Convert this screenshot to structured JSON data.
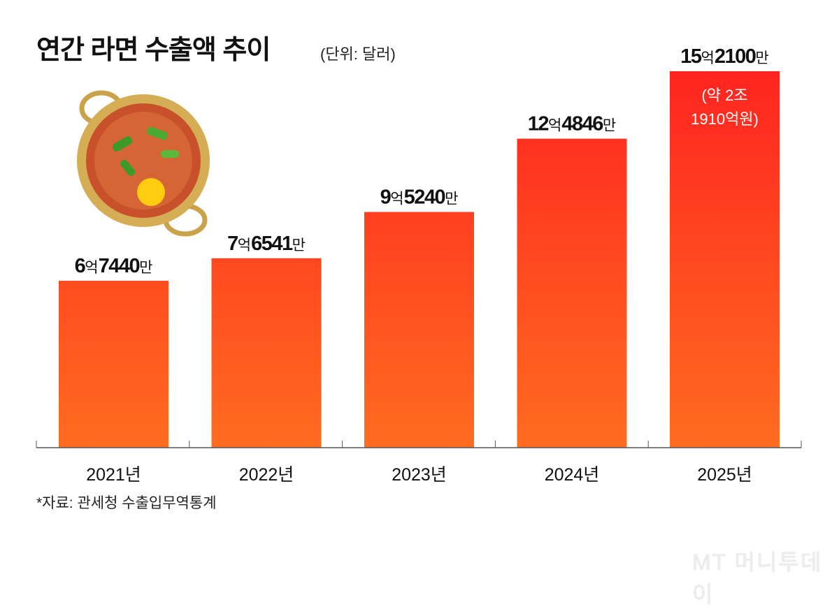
{
  "title": "연간 라면 수출액 추이",
  "unit_note": "(단위: 달러)",
  "source": "*자료: 관세청 수출입무역통계",
  "logo": "MT 머니투데이",
  "colors": {
    "bar_top": "#ff2420",
    "bar_bottom": "#ff6c20",
    "axis": "#555555"
  },
  "illustration": "ramen-pot-icon",
  "chart_data": {
    "type": "bar",
    "title": "연간 라면 수출액 추이",
    "ylabel": "(단위: 달러)",
    "categories": [
      "2021년",
      "2022년",
      "2023년",
      "2024년",
      "2025년"
    ],
    "values": [
      674400000,
      765410000,
      952400000,
      1248460000,
      1521000000
    ],
    "data_labels": [
      [
        {
          "t": "6",
          "b": true
        },
        {
          "t": "억",
          "b": false
        },
        {
          "t": "7440",
          "b": true
        },
        {
          "t": "만",
          "b": false
        }
      ],
      [
        {
          "t": "7",
          "b": true
        },
        {
          "t": "억",
          "b": false
        },
        {
          "t": "6541",
          "b": true
        },
        {
          "t": "만",
          "b": false
        }
      ],
      [
        {
          "t": "9",
          "b": true
        },
        {
          "t": "억",
          "b": false
        },
        {
          "t": "5240",
          "b": true
        },
        {
          "t": "만",
          "b": false
        }
      ],
      [
        {
          "t": "12",
          "b": true
        },
        {
          "t": "억",
          "b": false
        },
        {
          "t": "4846",
          "b": true
        },
        {
          "t": "만",
          "b": false
        }
      ],
      [
        {
          "t": "15",
          "b": true
        },
        {
          "t": "억",
          "b": false
        },
        {
          "t": "2100",
          "b": true
        },
        {
          "t": "만",
          "b": false
        }
      ]
    ],
    "annotations": [
      {
        "category": "2025년",
        "lines": [
          "(약 2조",
          "1910억원)"
        ]
      }
    ],
    "ylim": [
      0,
      1521000000
    ],
    "grid": false,
    "legend": "none"
  }
}
